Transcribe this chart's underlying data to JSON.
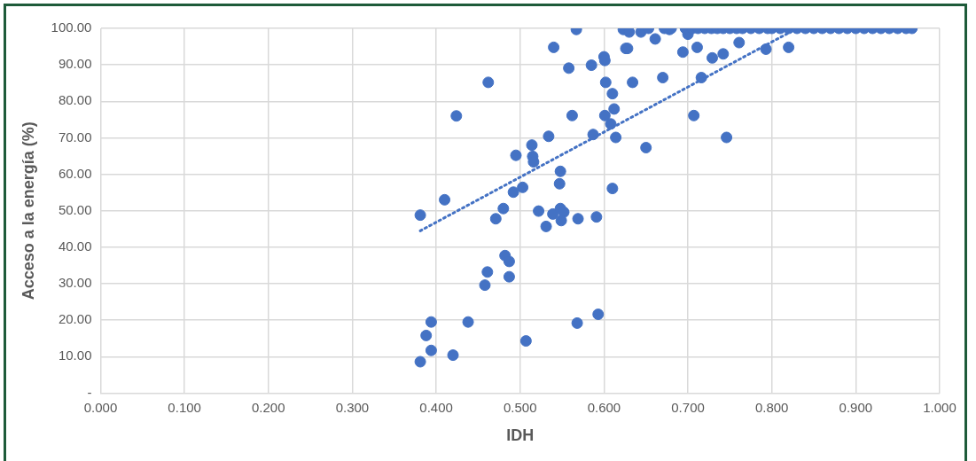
{
  "chart_data": {
    "type": "scatter",
    "xlabel": "IDH",
    "ylabel": "Acceso a la energía (%)",
    "xlim": [
      0,
      1
    ],
    "ylim": [
      0,
      100
    ],
    "xticks": [
      {
        "value": 0,
        "label": "0.000"
      },
      {
        "value": 0.1,
        "label": "0.100"
      },
      {
        "value": 0.2,
        "label": "0.200"
      },
      {
        "value": 0.3,
        "label": "0.300"
      },
      {
        "value": 0.4,
        "label": "0.400"
      },
      {
        "value": 0.5,
        "label": "0.500"
      },
      {
        "value": 0.6,
        "label": "0.600"
      },
      {
        "value": 0.7,
        "label": "0.700"
      },
      {
        "value": 0.8,
        "label": "0.800"
      },
      {
        "value": 0.9,
        "label": "0.900"
      },
      {
        "value": 1,
        "label": "1.000"
      }
    ],
    "yticks": [
      {
        "value": 0,
        "label": "-"
      },
      {
        "value": 10,
        "label": "10.00"
      },
      {
        "value": 20,
        "label": "20.00"
      },
      {
        "value": 30,
        "label": "30.00"
      },
      {
        "value": 40,
        "label": "40.00"
      },
      {
        "value": 50,
        "label": "50.00"
      },
      {
        "value": 60,
        "label": "60.00"
      },
      {
        "value": 70,
        "label": "70.00"
      },
      {
        "value": 80,
        "label": "80.00"
      },
      {
        "value": 90,
        "label": "90.00"
      },
      {
        "value": 100,
        "label": "100.00"
      }
    ],
    "grid": true,
    "marker": "circle",
    "series": [
      {
        "type": "scatter",
        "color": "#4472c4",
        "x": [
          0.381,
          0.41,
          0.424,
          0.462,
          0.381,
          0.388,
          0.394,
          0.394,
          0.42,
          0.438,
          0.458,
          0.461,
          0.482,
          0.487,
          0.487,
          0.507,
          0.471,
          0.48,
          0.492,
          0.503,
          0.495,
          0.514,
          0.567,
          0.54,
          0.558,
          0.585,
          0.6,
          0.601,
          0.602,
          0.61,
          0.612,
          0.601,
          0.608,
          0.614,
          0.634,
          0.67,
          0.65,
          0.707,
          0.746,
          0.716,
          0.694,
          0.711,
          0.729,
          0.742,
          0.761,
          0.562,
          0.534,
          0.587,
          0.515,
          0.516,
          0.548,
          0.547,
          0.61,
          0.623,
          0.63,
          0.644,
          0.653,
          0.661,
          0.626,
          0.628,
          0.678,
          0.7,
          0.522,
          0.539,
          0.548,
          0.552,
          0.549,
          0.531,
          0.569,
          0.591,
          0.593,
          0.568,
          0.793,
          0.82,
          0.672,
          0.68,
          0.697,
          0.705,
          0.712,
          0.72,
          0.728,
          0.735,
          0.742,
          0.75,
          0.758,
          0.765,
          0.775,
          0.785,
          0.795,
          0.8,
          0.81,
          0.82,
          0.83,
          0.84,
          0.85,
          0.86,
          0.87,
          0.88,
          0.89,
          0.9,
          0.91,
          0.92,
          0.93,
          0.94,
          0.95,
          0.96,
          0.967
        ],
        "values": [
          48.8,
          53,
          76,
          85.2,
          8.6,
          15.8,
          19.5,
          11.7,
          10.4,
          19.5,
          29.6,
          33.2,
          37.7,
          36.1,
          31.9,
          14.3,
          47.8,
          50.6,
          55.1,
          56.4,
          65.2,
          68,
          99.7,
          94.8,
          89.1,
          89.9,
          92.2,
          91.2,
          85.2,
          82.1,
          77.9,
          76.1,
          73.8,
          70.1,
          85.2,
          86.5,
          67.3,
          76.1,
          70.1,
          86.5,
          93.5,
          94.8,
          91.9,
          93,
          96.1,
          76.1,
          70.4,
          70.9,
          64.9,
          63.4,
          60.8,
          57.4,
          56.1,
          99.7,
          99,
          99,
          100,
          97.1,
          94.5,
          94.5,
          99.7,
          98.4,
          49.9,
          49.1,
          50.6,
          49.6,
          47.3,
          45.7,
          47.8,
          48.3,
          21.6,
          19.2,
          94.3,
          94.8,
          100,
          100,
          100,
          100,
          100,
          100,
          100,
          100,
          100,
          100,
          100,
          100,
          100,
          100,
          100,
          100,
          100,
          100,
          100,
          100,
          100,
          100,
          100,
          100,
          100,
          100,
          100,
          100,
          100,
          100,
          100,
          100,
          100
        ]
      },
      {
        "type": "line",
        "color": "#4472c4",
        "line_style": "dotted",
        "marker": "none",
        "x": [
          0.381,
          0.83
        ],
        "values": [
          44.5,
          100
        ]
      }
    ]
  }
}
